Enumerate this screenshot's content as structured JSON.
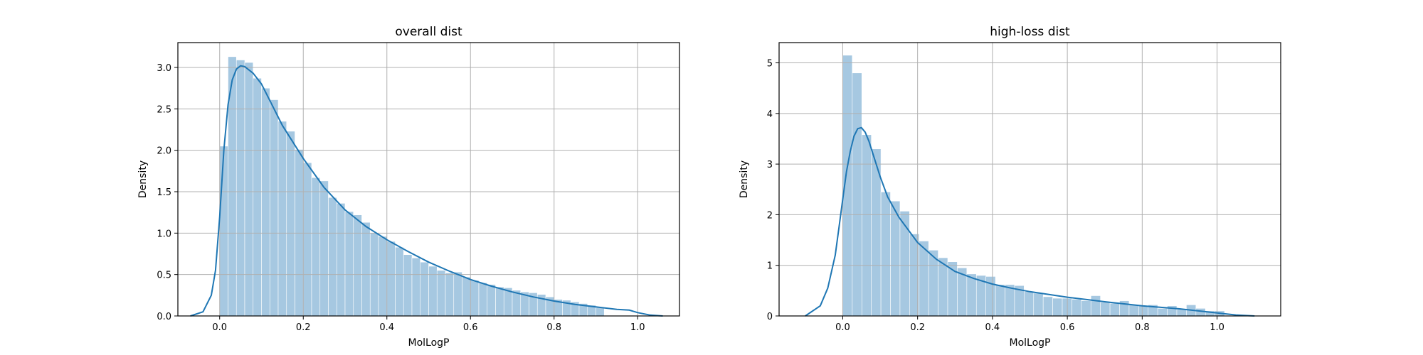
{
  "chart_data": [
    {
      "type": "histogram",
      "title": "overall dist",
      "xlabel": "MolLogP",
      "ylabel": "Density",
      "xlim": [
        -0.1,
        1.1
      ],
      "ylim": [
        0,
        3.3
      ],
      "xticks": [
        "0.0",
        "0.2",
        "0.4",
        "0.6",
        "0.8",
        "1.0"
      ],
      "yticks": [
        "0.0",
        "0.5",
        "1.0",
        "1.5",
        "2.0",
        "2.5",
        "3.0"
      ],
      "grid": true,
      "bin_start": 0.0,
      "bin_width": 0.02,
      "densities": [
        2.05,
        3.13,
        3.09,
        3.06,
        2.87,
        2.75,
        2.61,
        2.35,
        2.23,
        2.01,
        1.85,
        1.67,
        1.63,
        1.43,
        1.36,
        1.26,
        1.22,
        1.13,
        1.0,
        0.96,
        0.9,
        0.83,
        0.74,
        0.7,
        0.65,
        0.6,
        0.55,
        0.52,
        0.53,
        0.47,
        0.43,
        0.4,
        0.38,
        0.35,
        0.34,
        0.31,
        0.29,
        0.28,
        0.26,
        0.23,
        0.2,
        0.19,
        0.17,
        0.15,
        0.13,
        0.1
      ],
      "kde_x": [
        -0.07,
        -0.04,
        -0.02,
        -0.01,
        0.0,
        0.01,
        0.02,
        0.03,
        0.04,
        0.05,
        0.06,
        0.08,
        0.1,
        0.12,
        0.15,
        0.2,
        0.25,
        0.3,
        0.35,
        0.4,
        0.45,
        0.5,
        0.55,
        0.6,
        0.65,
        0.7,
        0.75,
        0.8,
        0.85,
        0.9,
        0.95,
        0.98,
        1.0,
        1.03,
        1.06
      ],
      "kde_y": [
        0.0,
        0.05,
        0.25,
        0.55,
        1.2,
        2.0,
        2.55,
        2.85,
        2.98,
        3.02,
        3.01,
        2.93,
        2.8,
        2.6,
        2.3,
        1.9,
        1.55,
        1.28,
        1.08,
        0.92,
        0.78,
        0.65,
        0.54,
        0.44,
        0.36,
        0.29,
        0.23,
        0.18,
        0.14,
        0.11,
        0.08,
        0.07,
        0.04,
        0.01,
        0.0
      ]
    },
    {
      "type": "histogram",
      "title": "high-loss dist",
      "xlabel": "MolLogP",
      "ylabel": "Density",
      "xlim": [
        -0.17,
        1.17
      ],
      "ylim": [
        0,
        5.4
      ],
      "xticks": [
        "0.0",
        "0.2",
        "0.4",
        "0.6",
        "0.8",
        "1.0"
      ],
      "yticks": [
        "0",
        "1",
        "2",
        "3",
        "4",
        "5"
      ],
      "grid": true,
      "bin_start": 0.0,
      "bin_width": 0.0255,
      "densities": [
        5.15,
        4.8,
        3.58,
        3.3,
        2.45,
        2.27,
        2.07,
        1.62,
        1.48,
        1.3,
        1.15,
        1.07,
        0.95,
        0.83,
        0.8,
        0.78,
        0.62,
        0.62,
        0.6,
        0.48,
        0.45,
        0.38,
        0.35,
        0.35,
        0.33,
        0.3,
        0.4,
        0.27,
        0.25,
        0.3,
        0.22,
        0.2,
        0.22,
        0.15,
        0.2,
        0.13,
        0.22,
        0.15,
        0.1,
        0.1
      ],
      "kde_x": [
        -0.1,
        -0.06,
        -0.04,
        -0.02,
        -0.01,
        0.0,
        0.01,
        0.02,
        0.03,
        0.04,
        0.05,
        0.06,
        0.07,
        0.08,
        0.1,
        0.12,
        0.15,
        0.2,
        0.25,
        0.3,
        0.35,
        0.4,
        0.45,
        0.5,
        0.6,
        0.7,
        0.8,
        0.9,
        0.95,
        1.0,
        1.05,
        1.1
      ],
      "kde_y": [
        0.0,
        0.2,
        0.55,
        1.2,
        1.75,
        2.3,
        2.85,
        3.25,
        3.55,
        3.7,
        3.72,
        3.63,
        3.45,
        3.22,
        2.75,
        2.35,
        1.95,
        1.45,
        1.12,
        0.88,
        0.74,
        0.63,
        0.55,
        0.48,
        0.37,
        0.28,
        0.2,
        0.14,
        0.1,
        0.06,
        0.02,
        0.0
      ]
    }
  ]
}
